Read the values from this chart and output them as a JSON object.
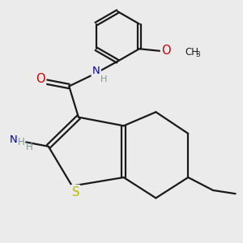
{
  "bg_color": "#ebebeb",
  "bond_color": "#1a1a1a",
  "bond_width": 1.6,
  "dbo": 0.05,
  "atom_colors": {
    "S": "#b8b800",
    "N": "#0000cc",
    "O": "#cc0000",
    "C": "#1a1a1a",
    "H": "#7a9a9a"
  },
  "font_size": 9.5,
  "fig_size": [
    3.0,
    3.0
  ],
  "dpi": 100,
  "xlim": [
    -0.3,
    5.2
  ],
  "ylim": [
    -0.8,
    4.8
  ]
}
